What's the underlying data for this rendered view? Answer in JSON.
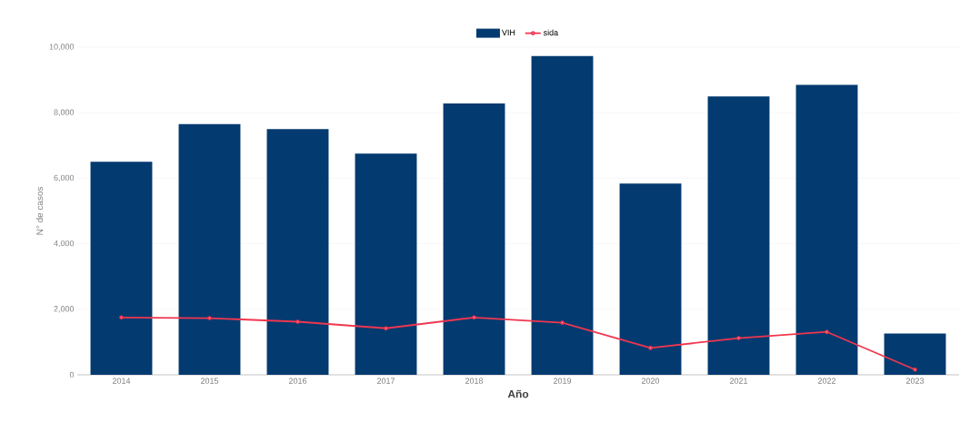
{
  "chart_data": {
    "type": "bar",
    "xlabel": "Año",
    "ylabel": "N° de casos",
    "categories": [
      "2014",
      "2015",
      "2016",
      "2017",
      "2018",
      "2019",
      "2020",
      "2021",
      "2022",
      "2023"
    ],
    "series": [
      {
        "name": "VIH",
        "type": "bar",
        "color": "#033a70",
        "values": [
          6500,
          7650,
          7500,
          6750,
          8280,
          9730,
          5840,
          8500,
          8850,
          1260
        ]
      },
      {
        "name": "sida",
        "type": "line",
        "color": "#f0364f",
        "marker": "circle",
        "values": [
          1750,
          1730,
          1620,
          1420,
          1750,
          1590,
          820,
          1120,
          1310,
          160
        ]
      }
    ],
    "ylim": [
      0,
      10000
    ],
    "yticks": [
      {
        "value": 0,
        "label": "0"
      },
      {
        "value": 2000,
        "label": "2,000"
      },
      {
        "value": 4000,
        "label": "4,000"
      },
      {
        "value": 6000,
        "label": "6,000"
      },
      {
        "value": 8000,
        "label": "8,000"
      },
      {
        "value": 10000,
        "label": "10,000"
      }
    ],
    "grid": "y",
    "legend": "top"
  }
}
